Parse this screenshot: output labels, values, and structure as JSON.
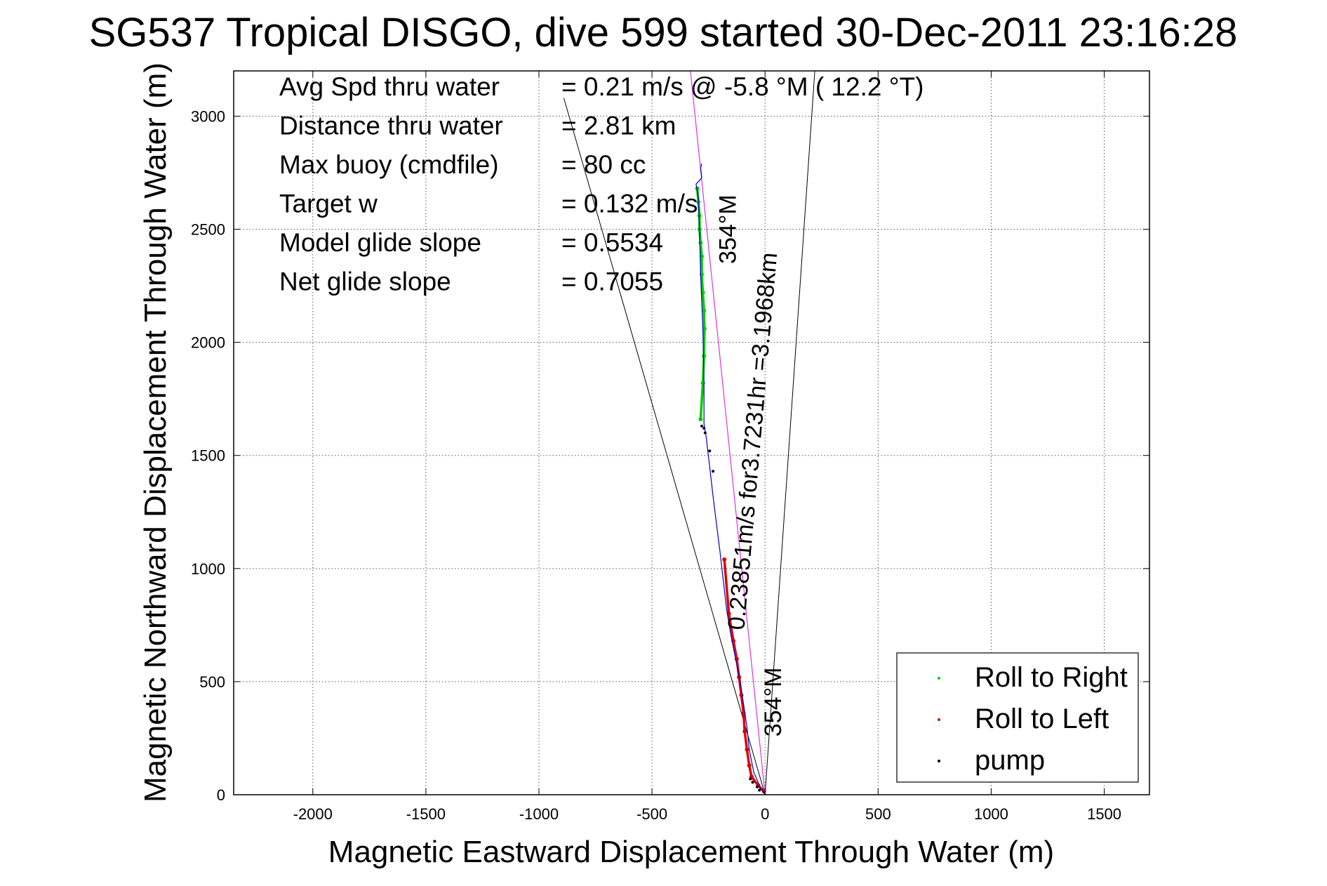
{
  "chart_data": {
    "type": "scatter",
    "title": "SG537 Tropical DISGO, dive 599 started 30-Dec-2011 23:16:28",
    "xlabel": "Magnetic Eastward Displacement Through Water (m)",
    "ylabel": "Magnetic Northward Displacement Through Water (m)",
    "xlim": [
      -2350,
      1700
    ],
    "ylim": [
      0,
      3200
    ],
    "xticks": [
      -2000,
      -1500,
      -1000,
      -500,
      0,
      500,
      1000,
      1500
    ],
    "yticks": [
      0,
      500,
      1000,
      1500,
      2000,
      2500,
      3000
    ],
    "grid": true,
    "legend_position": "bottom-right",
    "stats": [
      {
        "label": "Avg Spd thru water",
        "value": "=  0.21 m/s @  -5.8 °M ( 12.2 °T)"
      },
      {
        "label": "Distance thru water",
        "value": "=  2.81 km"
      },
      {
        "label": "Max buoy (cmdfile)",
        "value": "= 80 cc"
      },
      {
        "label": "Target w",
        "value": "= 0.132 m/s"
      },
      {
        "label": "Model glide slope",
        "value": "= 0.5534"
      },
      {
        "label": "Net glide slope",
        "value": "= 0.7055"
      }
    ],
    "annotations": [
      {
        "text": "354°M",
        "x": -130,
        "y": 2500,
        "rotation": -90
      },
      {
        "text": "0.23851m/s for3.7231hr =3.1968km",
        "x": -20,
        "y": 1560,
        "rotation": -85
      },
      {
        "text": "354°M",
        "x": 70,
        "y": 410,
        "rotation": -90
      }
    ],
    "reference_lines": [
      {
        "name": "cone-left",
        "x": [
          0,
          -890
        ],
        "y": [
          0,
          3080
        ]
      },
      {
        "name": "cone-right",
        "x": [
          0,
          220
        ],
        "y": [
          0,
          3200
        ]
      },
      {
        "name": "heading",
        "x": [
          0,
          -330
        ],
        "y": [
          0,
          3200
        ]
      }
    ],
    "series": [
      {
        "name": "Roll to Right",
        "color": "#00cc00",
        "x": [
          -300,
          -295,
          -290,
          -290,
          -285,
          -280,
          -280,
          -275,
          -270,
          -268,
          -270,
          -275,
          -285
        ],
        "y": [
          2680,
          2620,
          2560,
          2500,
          2440,
          2380,
          2300,
          2220,
          2140,
          2060,
          1940,
          1820,
          1660
        ]
      },
      {
        "name": "Roll to Left",
        "color": "#dd0000",
        "x": [
          -5,
          -30,
          -60,
          -70,
          -80,
          -90,
          -95,
          -105,
          -115,
          -125,
          -140,
          -160,
          -180
        ],
        "y": [
          15,
          40,
          80,
          130,
          200,
          280,
          360,
          440,
          520,
          600,
          680,
          800,
          1040
        ]
      },
      {
        "name": "pump",
        "color": "#000000",
        "x": [
          -25,
          -35,
          -55,
          -65,
          -230,
          -245,
          -265,
          -270,
          -280
        ],
        "y": [
          20,
          35,
          55,
          70,
          1430,
          1520,
          1600,
          1620,
          1630
        ]
      },
      {
        "name": "track",
        "color": "#0000cc",
        "x": [
          0,
          -20,
          -50,
          -70,
          -80,
          -95,
          -110,
          -130,
          -150,
          -170,
          -185,
          -200,
          -215,
          -230,
          -245,
          -260,
          -270,
          -270,
          -275,
          -285,
          -290,
          -295,
          -305,
          -285,
          -280,
          -285,
          -280
        ],
        "y": [
          0,
          30,
          100,
          200,
          300,
          400,
          500,
          600,
          700,
          820,
          950,
          1080,
          1200,
          1320,
          1450,
          1580,
          1640,
          1820,
          2060,
          2300,
          2500,
          2640,
          2700,
          2720,
          2730,
          2770,
          2790
        ]
      }
    ]
  }
}
